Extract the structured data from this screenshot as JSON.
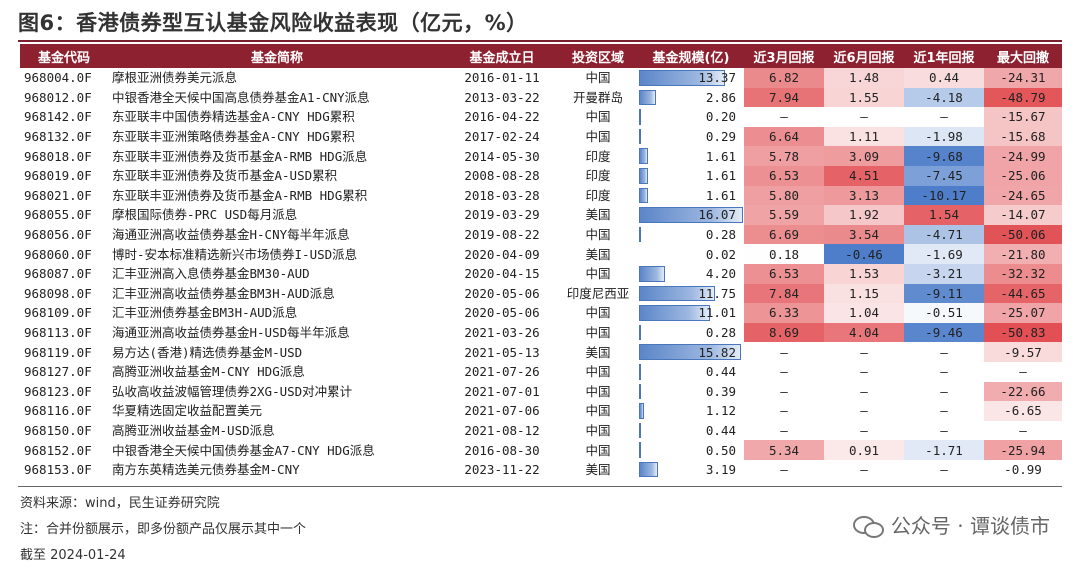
{
  "title": "图6：香港债券型互认基金风险收益表现（亿元，%）",
  "columns": [
    "基金代码",
    "基金简称",
    "基金成立日",
    "投资区域",
    "基金规模(亿)",
    "近3月回报",
    "近6月回报",
    "近1年回报",
    "最大回撤"
  ],
  "colors": {
    "header_bg": "#8e2130",
    "rule": "#7a1f2b",
    "bar": "#5b86c9",
    "positive_max": "#e0474c",
    "negative_max": "#3a6fc4"
  },
  "size_max": 16.07,
  "rows": [
    {
      "code": "968004.0F",
      "name": "摩根亚洲债券美元派息",
      "date": "2016-01-11",
      "region": "中国",
      "size": "13.37",
      "r3m": "6.82",
      "r6m": "1.48",
      "r1y": "0.44",
      "mdd": "-24.31"
    },
    {
      "code": "968012.0F",
      "name": "中银香港全天候中国高息债券基金A1-CNY派息",
      "date": "2013-03-22",
      "region": "开曼群岛",
      "size": "2.86",
      "r3m": "7.94",
      "r6m": "1.55",
      "r1y": "-4.18",
      "mdd": "-48.79"
    },
    {
      "code": "968142.0F",
      "name": "东亚联丰中国债券精选基金A-CNY HDG累积",
      "date": "2016-04-22",
      "region": "中国",
      "size": "0.20",
      "r3m": "–",
      "r6m": "–",
      "r1y": "–",
      "mdd": "-15.67"
    },
    {
      "code": "968132.0F",
      "name": "东亚联丰亚洲策略债券基金A-CNY HDG累积",
      "date": "2017-02-24",
      "region": "中国",
      "size": "0.29",
      "r3m": "6.64",
      "r6m": "1.11",
      "r1y": "-1.98",
      "mdd": "-15.68"
    },
    {
      "code": "968018.0F",
      "name": "东亚联丰亚洲债券及货币基金A-RMB HDG派息",
      "date": "2014-05-30",
      "region": "印度",
      "size": "1.61",
      "r3m": "5.78",
      "r6m": "3.09",
      "r1y": "-9.68",
      "mdd": "-24.99"
    },
    {
      "code": "968019.0F",
      "name": "东亚联丰亚洲债券及货币基金A-USD累积",
      "date": "2008-08-28",
      "region": "印度",
      "size": "1.61",
      "r3m": "6.53",
      "r6m": "4.51",
      "r1y": "-7.45",
      "mdd": "-25.06"
    },
    {
      "code": "968021.0F",
      "name": "东亚联丰亚洲债券及货币基金A-RMB HDG累积",
      "date": "2018-03-28",
      "region": "印度",
      "size": "1.61",
      "r3m": "5.80",
      "r6m": "3.13",
      "r1y": "-10.17",
      "mdd": "-24.65"
    },
    {
      "code": "968055.0F",
      "name": "摩根国际债券-PRC USD每月派息",
      "date": "2019-03-29",
      "region": "美国",
      "size": "16.07",
      "r3m": "5.59",
      "r6m": "1.92",
      "r1y": "1.54",
      "mdd": "-14.07"
    },
    {
      "code": "968056.0F",
      "name": "海通亚洲高收益债券基金H-CNY每半年派息",
      "date": "2019-08-22",
      "region": "中国",
      "size": "0.28",
      "r3m": "6.69",
      "r6m": "3.54",
      "r1y": "-4.71",
      "mdd": "-50.06"
    },
    {
      "code": "968060.0F",
      "name": "博时-安本标准精选新兴市场债券I-USD派息",
      "date": "2020-04-09",
      "region": "美国",
      "size": "0.02",
      "r3m": "0.18",
      "r6m": "-0.46",
      "r1y": "-1.69",
      "mdd": "-21.80"
    },
    {
      "code": "968087.0F",
      "name": "汇丰亚洲高入息债券基金BM30-AUD",
      "date": "2020-04-15",
      "region": "中国",
      "size": "4.20",
      "r3m": "6.53",
      "r6m": "1.53",
      "r1y": "-3.21",
      "mdd": "-32.32"
    },
    {
      "code": "968098.0F",
      "name": "汇丰亚洲高收益债券基金BM3H-AUD派息",
      "date": "2020-05-06",
      "region": "印度尼西亚",
      "size": "11.75",
      "r3m": "7.84",
      "r6m": "1.15",
      "r1y": "-9.11",
      "mdd": "-44.65"
    },
    {
      "code": "968109.0F",
      "name": "汇丰亚洲债券基金BM3H-AUD派息",
      "date": "2020-05-06",
      "region": "中国",
      "size": "11.01",
      "r3m": "6.33",
      "r6m": "1.04",
      "r1y": "-0.51",
      "mdd": "-25.07"
    },
    {
      "code": "968113.0F",
      "name": "海通亚洲高收益债券基金H-USD每半年派息",
      "date": "2021-03-26",
      "region": "中国",
      "size": "0.28",
      "r3m": "8.69",
      "r6m": "4.04",
      "r1y": "-9.46",
      "mdd": "-50.83"
    },
    {
      "code": "968119.0F",
      "name": "易方达(香港)精选债券基金M-USD",
      "date": "2021-05-13",
      "region": "美国",
      "size": "15.82",
      "r3m": "–",
      "r6m": "–",
      "r1y": "–",
      "mdd": "-9.57"
    },
    {
      "code": "968127.0F",
      "name": "高腾亚洲收益基金M-CNY HDG派息",
      "date": "2021-07-26",
      "region": "中国",
      "size": "0.44",
      "r3m": "–",
      "r6m": "–",
      "r1y": "–",
      "mdd": "–"
    },
    {
      "code": "968123.0F",
      "name": "弘收高收益波幅管理债券2XG-USD对冲累计",
      "date": "2021-07-01",
      "region": "中国",
      "size": "0.39",
      "r3m": "–",
      "r6m": "–",
      "r1y": "–",
      "mdd": "-22.66"
    },
    {
      "code": "968116.0F",
      "name": "华夏精选固定收益配置美元",
      "date": "2021-07-06",
      "region": "中国",
      "size": "1.12",
      "r3m": "–",
      "r6m": "–",
      "r1y": "–",
      "mdd": "-6.65"
    },
    {
      "code": "968150.0F",
      "name": "高腾亚洲收益基金M-USD派息",
      "date": "2021-08-12",
      "region": "中国",
      "size": "0.44",
      "r3m": "–",
      "r6m": "–",
      "r1y": "–",
      "mdd": "–"
    },
    {
      "code": "968152.0F",
      "name": "中银香港全天候中国债券基金A7-CNY HDG派息",
      "date": "2016-08-30",
      "region": "中国",
      "size": "0.50",
      "r3m": "5.34",
      "r6m": "0.91",
      "r1y": "-1.71",
      "mdd": "-25.94"
    },
    {
      "code": "968153.0F",
      "name": "南方东英精选美元债券基金M-CNY",
      "date": "2023-11-22",
      "region": "美国",
      "size": "3.19",
      "r3m": "–",
      "r6m": "–",
      "r1y": "–",
      "mdd": "-0.99"
    }
  ],
  "footer": {
    "source": "资料来源：wind，民生证券研究院",
    "note": "注：合并份额展示，即多份额产品仅展示其中一个",
    "date": "截至 2024-01-24"
  },
  "watermark": {
    "icon": "wechat-icon",
    "text": "公众号 · 谭谈债市"
  }
}
